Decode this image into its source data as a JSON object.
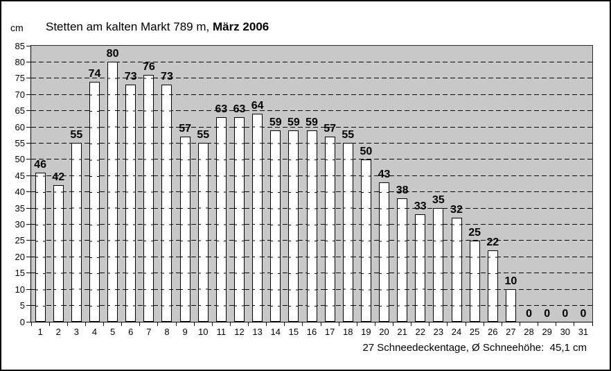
{
  "header": {
    "unit_label": "cm",
    "title_regular": "Stetten am kalten Markt 789 m, ",
    "title_bold": "März 2006"
  },
  "footer": {
    "summary": "27 Schneedeckentage, Ø Schneehöhe:  45,1 cm"
  },
  "chart_data": {
    "type": "bar",
    "title": "Stetten am kalten Markt 789 m, März 2006",
    "xlabel": "",
    "ylabel": "cm",
    "categories": [
      1,
      2,
      3,
      4,
      5,
      6,
      7,
      8,
      9,
      10,
      11,
      12,
      13,
      14,
      15,
      16,
      17,
      18,
      19,
      20,
      21,
      22,
      23,
      24,
      25,
      26,
      27,
      28,
      29,
      30,
      31
    ],
    "values": [
      46,
      42,
      55,
      74,
      80,
      73,
      76,
      73,
      57,
      55,
      63,
      63,
      64,
      59,
      59,
      59,
      57,
      55,
      50,
      43,
      38,
      33,
      35,
      32,
      25,
      22,
      10,
      0,
      0,
      0,
      0
    ],
    "ylim": [
      0,
      85
    ],
    "yticks": [
      0,
      5,
      10,
      15,
      20,
      25,
      30,
      35,
      40,
      45,
      50,
      55,
      60,
      65,
      70,
      75,
      80,
      85
    ],
    "grid": "horizontal-dashed",
    "legend": "none",
    "bar_value_labels": true,
    "summary": {
      "snow_cover_days": "27",
      "avg_snow_depth": "45,1 cm"
    },
    "colors": {
      "plot_background": "#c8c8c8",
      "bar_fill": "#ffffff",
      "bar_border": "#000000",
      "gridline": "#000000",
      "text": "#000000",
      "page_background": "#ffffff",
      "page_border": "#000000"
    }
  }
}
